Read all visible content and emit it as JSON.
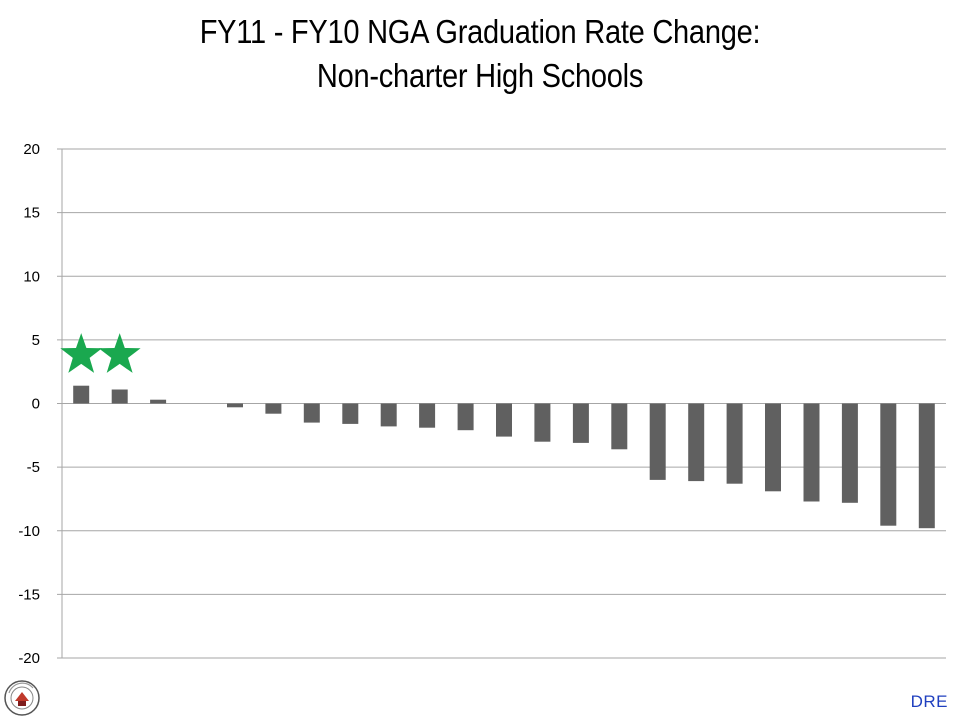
{
  "chart_data": {
    "type": "bar",
    "title_line1": "FY11 - FY10 NGA Graduation Rate Change:",
    "title_line2": "Non-charter High Schools",
    "xlabel": "",
    "ylabel": "",
    "ylim": [
      -20,
      20
    ],
    "yticks": [
      20,
      15,
      10,
      5,
      0,
      -5,
      -10,
      -15,
      -20
    ],
    "grid": true,
    "bar_color": "#606060",
    "values": [
      1.4,
      1.1,
      0.3,
      0.0,
      -0.3,
      -0.8,
      -1.5,
      -1.6,
      -1.8,
      -1.9,
      -2.1,
      -2.6,
      -3.0,
      -3.1,
      -3.6,
      -6.0,
      -6.1,
      -6.3,
      -6.9,
      -7.7,
      -7.8,
      -9.6,
      -9.8
    ],
    "star_markers": {
      "color": "#1aa84f",
      "category_index": [
        0,
        1
      ],
      "y": 3.8
    }
  },
  "footer": {
    "tag": "DRE",
    "tag_color": "#1f3fbf"
  },
  "logo": {
    "icon": "school-district-seal-icon"
  }
}
